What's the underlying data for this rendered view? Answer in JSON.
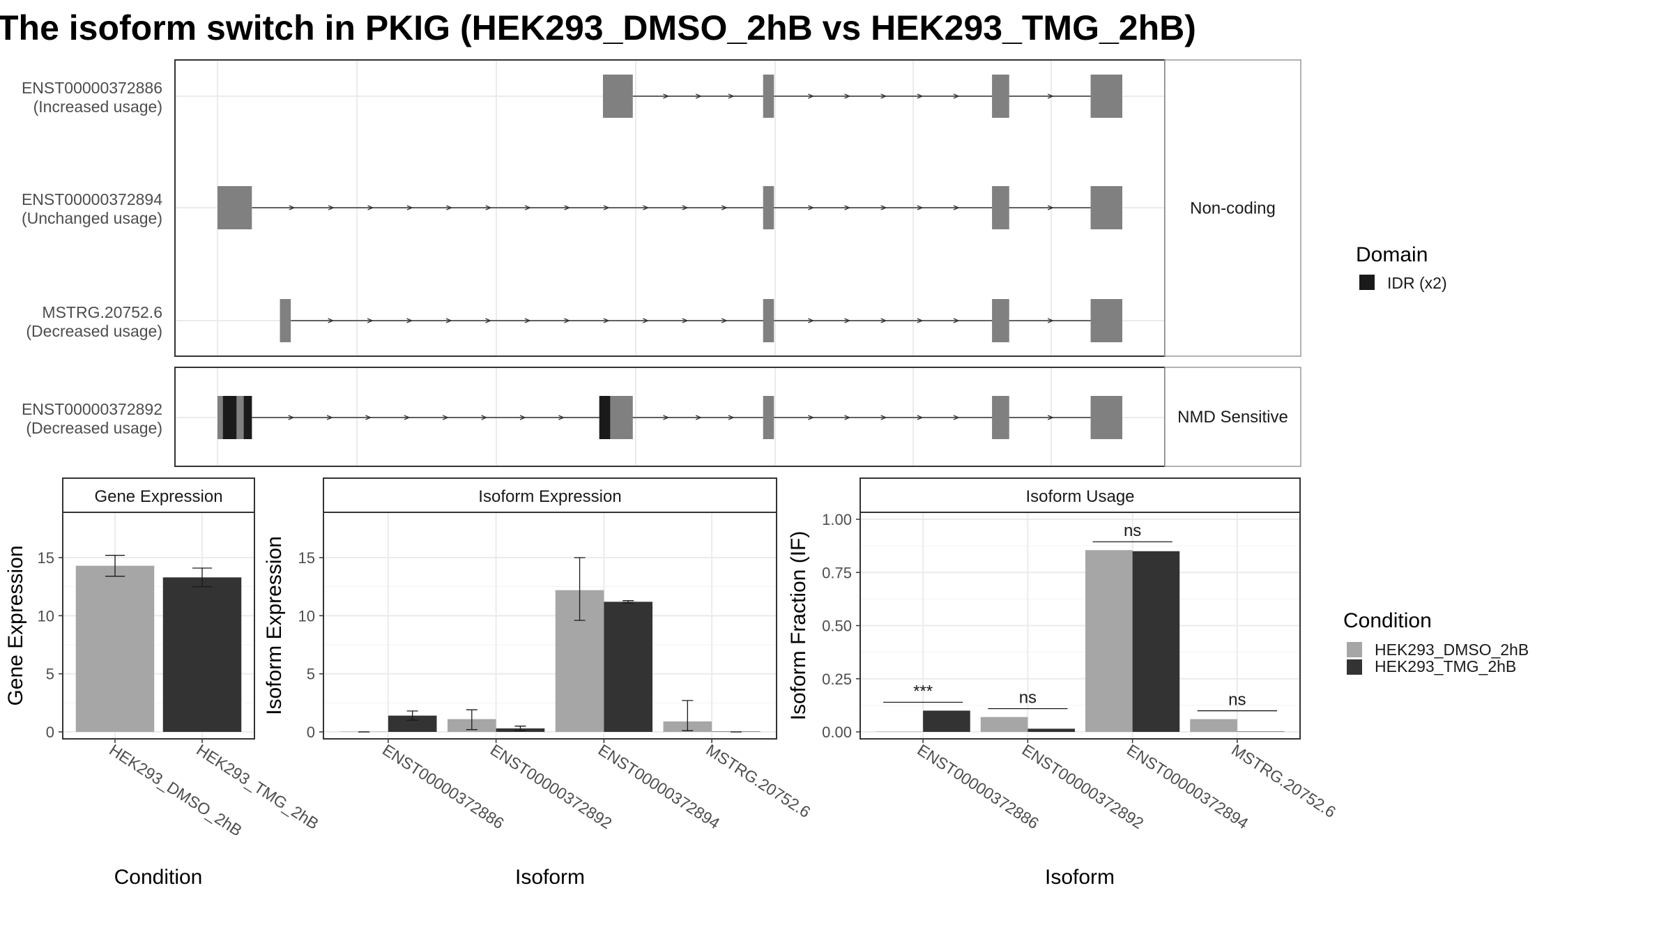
{
  "title": "The isoform switch in PKIG (HEK293_DMSO_2hB vs HEK293_TMG_2hB)",
  "colors": {
    "exon": "#808080",
    "domain": "#1a1a1a",
    "dmso": "#a6a6a6",
    "tmg": "#333333",
    "grid": "#ebebeb",
    "strip": "#ffffff"
  },
  "structure": {
    "x_range": [
      0,
      100
    ],
    "facets": [
      {
        "label": "Non-coding",
        "rows": 3
      },
      {
        "label": "NMD Sensitive",
        "rows": 1
      }
    ],
    "transcripts": [
      {
        "facet": 0,
        "id": "ENST00000372886",
        "usage": "(Increased usage)",
        "exons": [
          [
            42.6,
            45.9
          ],
          [
            60.3,
            61.5
          ],
          [
            85.6,
            87.5
          ],
          [
            96.5,
            100
          ]
        ],
        "domains": []
      },
      {
        "facet": 0,
        "id": "ENST00000372894",
        "usage": "(Unchanged usage)",
        "exons": [
          [
            0,
            3.8
          ],
          [
            60.3,
            61.5
          ],
          [
            85.6,
            87.5
          ],
          [
            96.5,
            100
          ]
        ],
        "domains": []
      },
      {
        "facet": 0,
        "id": "MSTRG.20752.6",
        "usage": "(Decreased usage)",
        "exons": [
          [
            6.9,
            8.1
          ],
          [
            60.3,
            61.5
          ],
          [
            85.6,
            87.5
          ],
          [
            96.5,
            100
          ]
        ],
        "domains": []
      },
      {
        "facet": 1,
        "id": "ENST00000372892",
        "usage": "(Decreased usage)",
        "exons": [
          [
            0,
            3.8
          ],
          [
            42.2,
            45.9
          ],
          [
            60.3,
            61.5
          ],
          [
            85.6,
            87.5
          ],
          [
            96.5,
            100
          ]
        ],
        "domains": [
          [
            0.6,
            2.1
          ],
          [
            2.9,
            3.8
          ],
          [
            42.2,
            43.4
          ]
        ]
      }
    ],
    "legend_title": "Domain",
    "legend_items": [
      "IDR (x2)"
    ]
  },
  "chart_data": [
    {
      "type": "bar",
      "title": "Gene Expression",
      "xlabel": "Condition",
      "ylabel": "Gene Expression",
      "ylim": [
        0,
        18.3
      ],
      "yticks": [
        "0",
        "5",
        "10",
        "15"
      ],
      "categories": [
        "HEK293_DMSO_2hB",
        "HEK293_TMG_2hB"
      ],
      "values": [
        14.3,
        13.3
      ],
      "errors": [
        [
          13.4,
          15.2
        ],
        [
          12.5,
          14.1
        ]
      ]
    },
    {
      "type": "bar",
      "title": "Isoform Expression",
      "xlabel": "Isoform",
      "ylabel": "Isoform Expression",
      "ylim": [
        0,
        18.3
      ],
      "yticks": [
        "0",
        "5",
        "10",
        "15"
      ],
      "categories": [
        "ENST00000372886",
        "ENST00000372892",
        "ENST00000372894",
        "MSTRG.20752.6"
      ],
      "series": [
        {
          "name": "HEK293_DMSO_2hB",
          "values": [
            0.0,
            1.1,
            12.2,
            0.9
          ],
          "errors": [
            [
              0,
              0
            ],
            [
              0.2,
              1.9
            ],
            [
              9.6,
              15.0
            ],
            [
              0.1,
              2.7
            ]
          ]
        },
        {
          "name": "HEK293_TMG_2hB",
          "values": [
            1.4,
            0.3,
            11.2,
            0.0
          ],
          "errors": [
            [
              1.0,
              1.8
            ],
            [
              0.1,
              0.5
            ],
            [
              11.1,
              11.3
            ],
            [
              0,
              0
            ]
          ]
        }
      ]
    },
    {
      "type": "bar",
      "title": "Isoform Usage",
      "xlabel": "Isoform",
      "ylabel": "Isoform Fraction (IF)",
      "ylim": [
        0,
        1.0
      ],
      "yticks": [
        "0.00",
        "0.25",
        "0.50",
        "0.75",
        "1.00"
      ],
      "categories": [
        "ENST00000372886",
        "ENST00000372892",
        "ENST00000372894",
        "MSTRG.20752.6"
      ],
      "series": [
        {
          "name": "HEK293_DMSO_2hB",
          "values": [
            0.0,
            0.07,
            0.855,
            0.06
          ]
        },
        {
          "name": "HEK293_TMG_2hB",
          "values": [
            0.1,
            0.015,
            0.85,
            0.0
          ]
        }
      ],
      "significance": [
        "***",
        "ns",
        "ns",
        "ns"
      ]
    }
  ],
  "condition_legend": {
    "title": "Condition",
    "items": [
      "HEK293_DMSO_2hB",
      "HEK293_TMG_2hB"
    ]
  }
}
